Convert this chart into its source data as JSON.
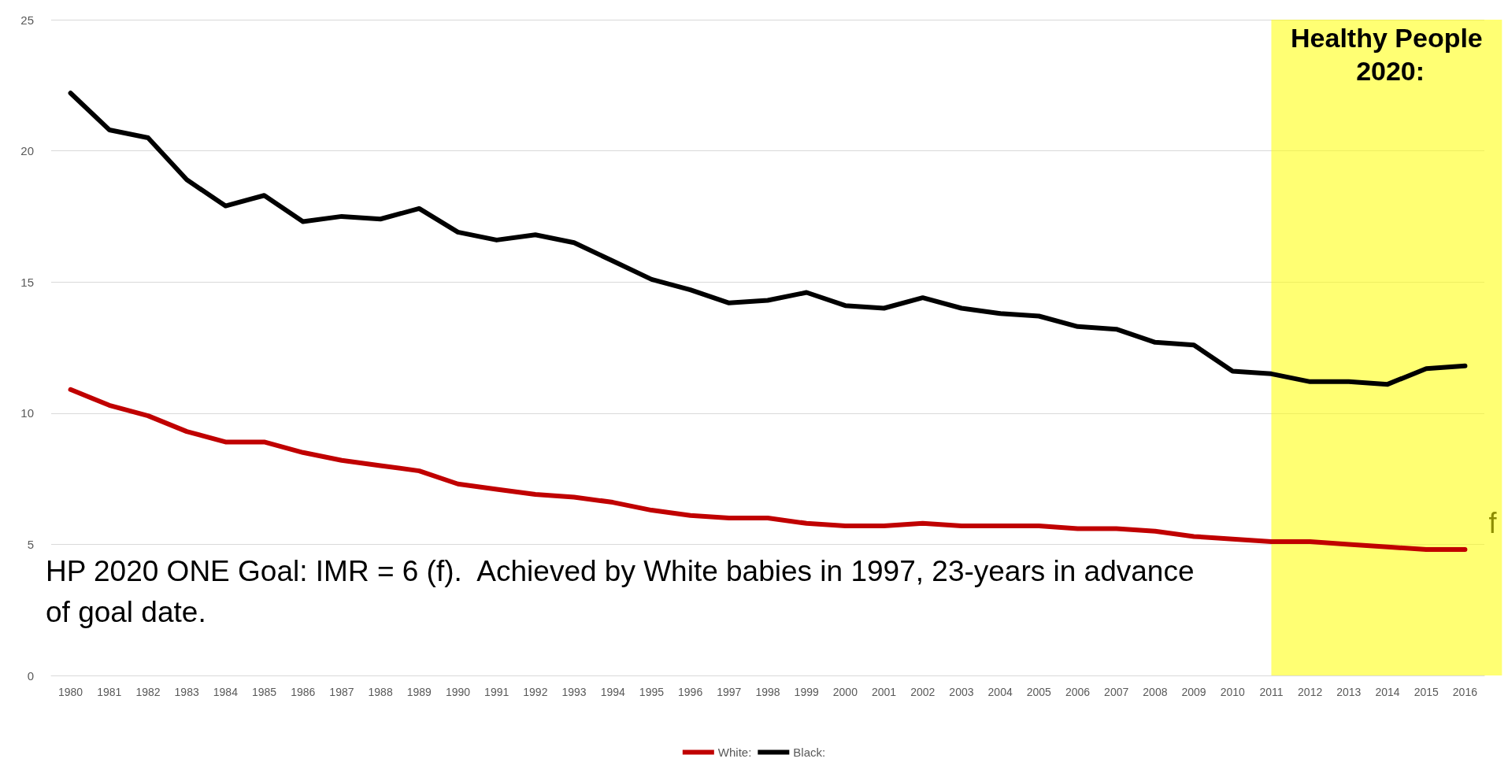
{
  "chart_data": {
    "type": "line",
    "categories": [
      "1980",
      "1981",
      "1982",
      "1983",
      "1984",
      "1985",
      "1986",
      "1987",
      "1988",
      "1989",
      "1990",
      "1991",
      "1992",
      "1993",
      "1994",
      "1995",
      "1996",
      "1997",
      "1998",
      "1999",
      "2000",
      "2001",
      "2002",
      "2003",
      "2004",
      "2005",
      "2006",
      "2007",
      "2008",
      "2009",
      "2010",
      "2011",
      "2012",
      "2013",
      "2014",
      "2015",
      "2016"
    ],
    "series": [
      {
        "name": "White:",
        "color": "#c00000",
        "values": [
          10.9,
          10.3,
          9.9,
          9.3,
          8.9,
          8.9,
          8.5,
          8.2,
          8.0,
          7.8,
          7.3,
          7.1,
          6.9,
          6.8,
          6.6,
          6.3,
          6.1,
          6.0,
          6.0,
          5.8,
          5.7,
          5.7,
          5.8,
          5.7,
          5.7,
          5.7,
          5.6,
          5.6,
          5.5,
          5.3,
          5.2,
          5.1,
          5.1,
          5.0,
          4.9,
          4.8,
          4.8
        ]
      },
      {
        "name": "Black:",
        "color": "#000000",
        "values": [
          22.2,
          20.8,
          20.5,
          18.9,
          17.9,
          18.3,
          17.3,
          17.5,
          17.4,
          17.8,
          16.9,
          16.6,
          16.8,
          16.5,
          15.8,
          15.1,
          14.7,
          14.2,
          14.3,
          14.6,
          14.1,
          14.0,
          14.4,
          14.0,
          13.8,
          13.7,
          13.3,
          13.2,
          12.7,
          12.6,
          11.6,
          11.5,
          11.2,
          11.2,
          11.1,
          11.7,
          11.8
        ]
      }
    ],
    "ylim": [
      0,
      25
    ],
    "yticks": [
      0,
      5,
      10,
      15,
      20,
      25
    ],
    "grid": "y",
    "legend": "bottom",
    "marker": "none",
    "line_style": "solid",
    "bands": [
      {
        "axis": "x",
        "from": "2011",
        "to": "2016",
        "label": "Healthy People 2020:",
        "color": "#ffff00"
      }
    ],
    "annotations": [
      "HP 2020 ONE Goal: IMR = 6 (f).  Achieved by White babies in 1997, 23-years in advance of goal date.",
      "f"
    ]
  }
}
